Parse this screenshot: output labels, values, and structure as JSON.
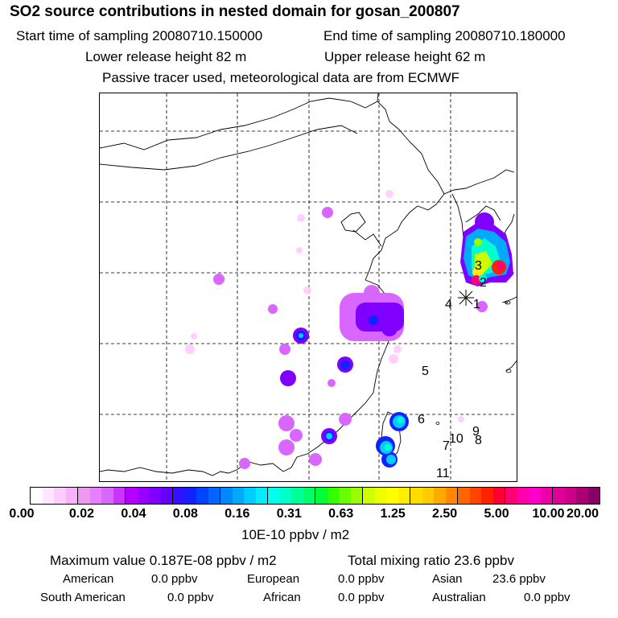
{
  "header": {
    "title": "SO2 source contributions in nested domain for gosan_200807",
    "start_time": "Start time of sampling 20080710.150000",
    "end_time": "End time of sampling 20080710.180000",
    "lower_height": "Lower release height   82 m",
    "upper_height": "Upper release height   62 m",
    "tracer_note": "Passive tracer used, meteorological data are from ECMWF"
  },
  "site_labels": [
    "1",
    "2",
    "3",
    "4",
    "5",
    "6",
    "7",
    "8",
    "9",
    "10",
    "11"
  ],
  "colorbar": {
    "colors": [
      "#ffffff",
      "#ffe6ff",
      "#ffccff",
      "#f7b3f7",
      "#ee99ee",
      "#e680ff",
      "#d966ff",
      "#cc33ff",
      "#b300ff",
      "#9900ff",
      "#8000ff",
      "#6600ff",
      "#3311ff",
      "#1122ff",
      "#0044ff",
      "#0066ff",
      "#0088ff",
      "#00aaff",
      "#00ccff",
      "#00eeff",
      "#00ffee",
      "#00ffcc",
      "#00ff99",
      "#00ff66",
      "#00ff33",
      "#33ff00",
      "#66ff00",
      "#99ff00",
      "#ccff00",
      "#eeff00",
      "#ffff00",
      "#ffee00",
      "#ffdd00",
      "#ffcc00",
      "#ffaa00",
      "#ff8800",
      "#ff6600",
      "#ff4400",
      "#ff2200",
      "#ff0033",
      "#ff0077",
      "#ff00aa",
      "#ff00cc",
      "#ee00aa",
      "#dd0099",
      "#cc0088",
      "#aa0077",
      "#880066"
    ],
    "tick_labels": [
      "0.00",
      "0.02",
      "0.04",
      "0.08",
      "0.16",
      "0.31",
      "0.63",
      "1.25",
      "2.50",
      "5.00",
      "10.00",
      "20.00"
    ],
    "unit": "10E-10 ppbv / m2"
  },
  "stats": {
    "max_value": "Maximum value  0.187E-08 ppbv / m2",
    "total_mixing": "Total mixing ratio       23.6 ppbv"
  },
  "regions": [
    {
      "name": "American",
      "value": "0.0 ppbv"
    },
    {
      "name": "European",
      "value": "0.0 ppbv"
    },
    {
      "name": "Asian",
      "value": "23.6 ppbv"
    },
    {
      "name": "South American",
      "value": "0.0 ppbv"
    },
    {
      "name": "African",
      "value": "0.0 ppbv"
    },
    {
      "name": "Australian",
      "value": "0.0 ppbv"
    }
  ]
}
